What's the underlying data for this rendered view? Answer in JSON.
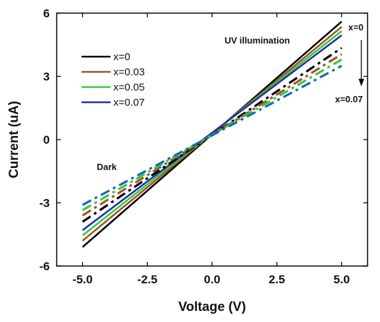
{
  "chart_data": {
    "type": "line",
    "title": "",
    "xlabel": "Voltage (V)",
    "ylabel": "Current (uA)",
    "xlim": [
      -6.0,
      6.0
    ],
    "ylim": [
      -6,
      6
    ],
    "x_ticks": [
      -5.0,
      -2.5,
      0.0,
      2.5,
      5.0
    ],
    "x_tick_labels": [
      "-5.0",
      "-2.5",
      "0.0",
      "2.5",
      "5.0"
    ],
    "y_ticks": [
      -6,
      -3,
      0,
      3,
      6
    ],
    "y_tick_labels": [
      "-6",
      "-3",
      "0",
      "3",
      "6"
    ],
    "grid": false,
    "legend_position": "top-left",
    "series": [
      {
        "name": "x=0",
        "condition": "UV illumination",
        "style": "solid",
        "color": "#000000",
        "x": [
          -5.0,
          5.0
        ],
        "y": [
          -5.1,
          5.6
        ]
      },
      {
        "name": "x=0.03",
        "condition": "UV illumination",
        "style": "solid",
        "color": "#a0522d",
        "x": [
          -5.0,
          5.0
        ],
        "y": [
          -4.8,
          5.35
        ]
      },
      {
        "name": "x=0.05",
        "condition": "UV illumination",
        "style": "solid",
        "color": "#33cc33",
        "x": [
          -5.0,
          5.0
        ],
        "y": [
          -4.55,
          5.15
        ]
      },
      {
        "name": "x=0.07",
        "condition": "UV illumination",
        "style": "solid",
        "color": "#1f2fa8",
        "x": [
          -5.0,
          5.0
        ],
        "y": [
          -4.3,
          4.95
        ]
      },
      {
        "name": "x=0",
        "condition": "Dark",
        "style": "dashdot",
        "color": "#000000",
        "x": [
          -5.0,
          5.0
        ],
        "y": [
          -3.9,
          4.35
        ]
      },
      {
        "name": "x=0.03",
        "condition": "Dark",
        "style": "dashdot",
        "color": "#a0522d",
        "x": [
          -5.0,
          5.0
        ],
        "y": [
          -3.6,
          4.05
        ]
      },
      {
        "name": "x=0.05",
        "condition": "Dark",
        "style": "dashdot",
        "color": "#33cc33",
        "x": [
          -5.0,
          5.0
        ],
        "y": [
          -3.35,
          3.8
        ]
      },
      {
        "name": "x=0.07",
        "condition": "Dark",
        "style": "dashdot",
        "color": "#1565c0",
        "x": [
          -5.0,
          5.0
        ],
        "y": [
          -3.1,
          3.5
        ]
      }
    ],
    "legend": [
      {
        "label": "x=0",
        "color": "#000000"
      },
      {
        "label": "x=0.03",
        "color": "#a0522d"
      },
      {
        "label": "x=0.05",
        "color": "#33cc33"
      },
      {
        "label": "x=0.07",
        "color": "#1f2fa8"
      }
    ],
    "annotations": {
      "uv": "UV illumination",
      "dark": "Dark",
      "arrow_start": "x=0",
      "arrow_end": "x=0.07"
    }
  }
}
